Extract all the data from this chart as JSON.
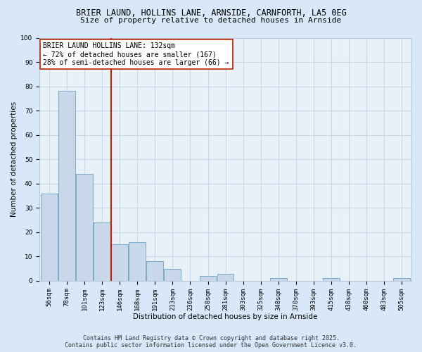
{
  "title_line1": "BRIER LAUND, HOLLINS LANE, ARNSIDE, CARNFORTH, LA5 0EG",
  "title_line2": "Size of property relative to detached houses in Arnside",
  "xlabel": "Distribution of detached houses by size in Arnside",
  "ylabel": "Number of detached properties",
  "categories": [
    "56sqm",
    "78sqm",
    "101sqm",
    "123sqm",
    "146sqm",
    "168sqm",
    "191sqm",
    "213sqm",
    "236sqm",
    "258sqm",
    "281sqm",
    "303sqm",
    "325sqm",
    "348sqm",
    "370sqm",
    "393sqm",
    "415sqm",
    "438sqm",
    "460sqm",
    "483sqm",
    "505sqm"
  ],
  "values": [
    36,
    78,
    44,
    24,
    15,
    16,
    8,
    5,
    0,
    2,
    3,
    0,
    0,
    1,
    0,
    0,
    1,
    0,
    0,
    0,
    1
  ],
  "bar_color": "#c8d8ea",
  "bar_edge_color": "#7aaac8",
  "vline_color": "#bb2200",
  "annotation_text": "BRIER LAUND HOLLINS LANE: 132sqm\n← 72% of detached houses are smaller (167)\n28% of semi-detached houses are larger (66) →",
  "annotation_box_facecolor": "#ffffff",
  "annotation_box_edgecolor": "#bb2200",
  "ylim": [
    0,
    100
  ],
  "yticks": [
    0,
    10,
    20,
    30,
    40,
    50,
    60,
    70,
    80,
    90,
    100
  ],
  "grid_color": "#c8d8ea",
  "background_color": "#d8e8f8",
  "plot_bg_color": "#e8f0f8",
  "footer_text": "Contains HM Land Registry data © Crown copyright and database right 2025.\nContains public sector information licensed under the Open Government Licence v3.0.",
  "title_fontsize": 8.5,
  "subtitle_fontsize": 8,
  "axis_label_fontsize": 7.5,
  "tick_fontsize": 6.5,
  "annotation_fontsize": 7,
  "footer_fontsize": 6
}
